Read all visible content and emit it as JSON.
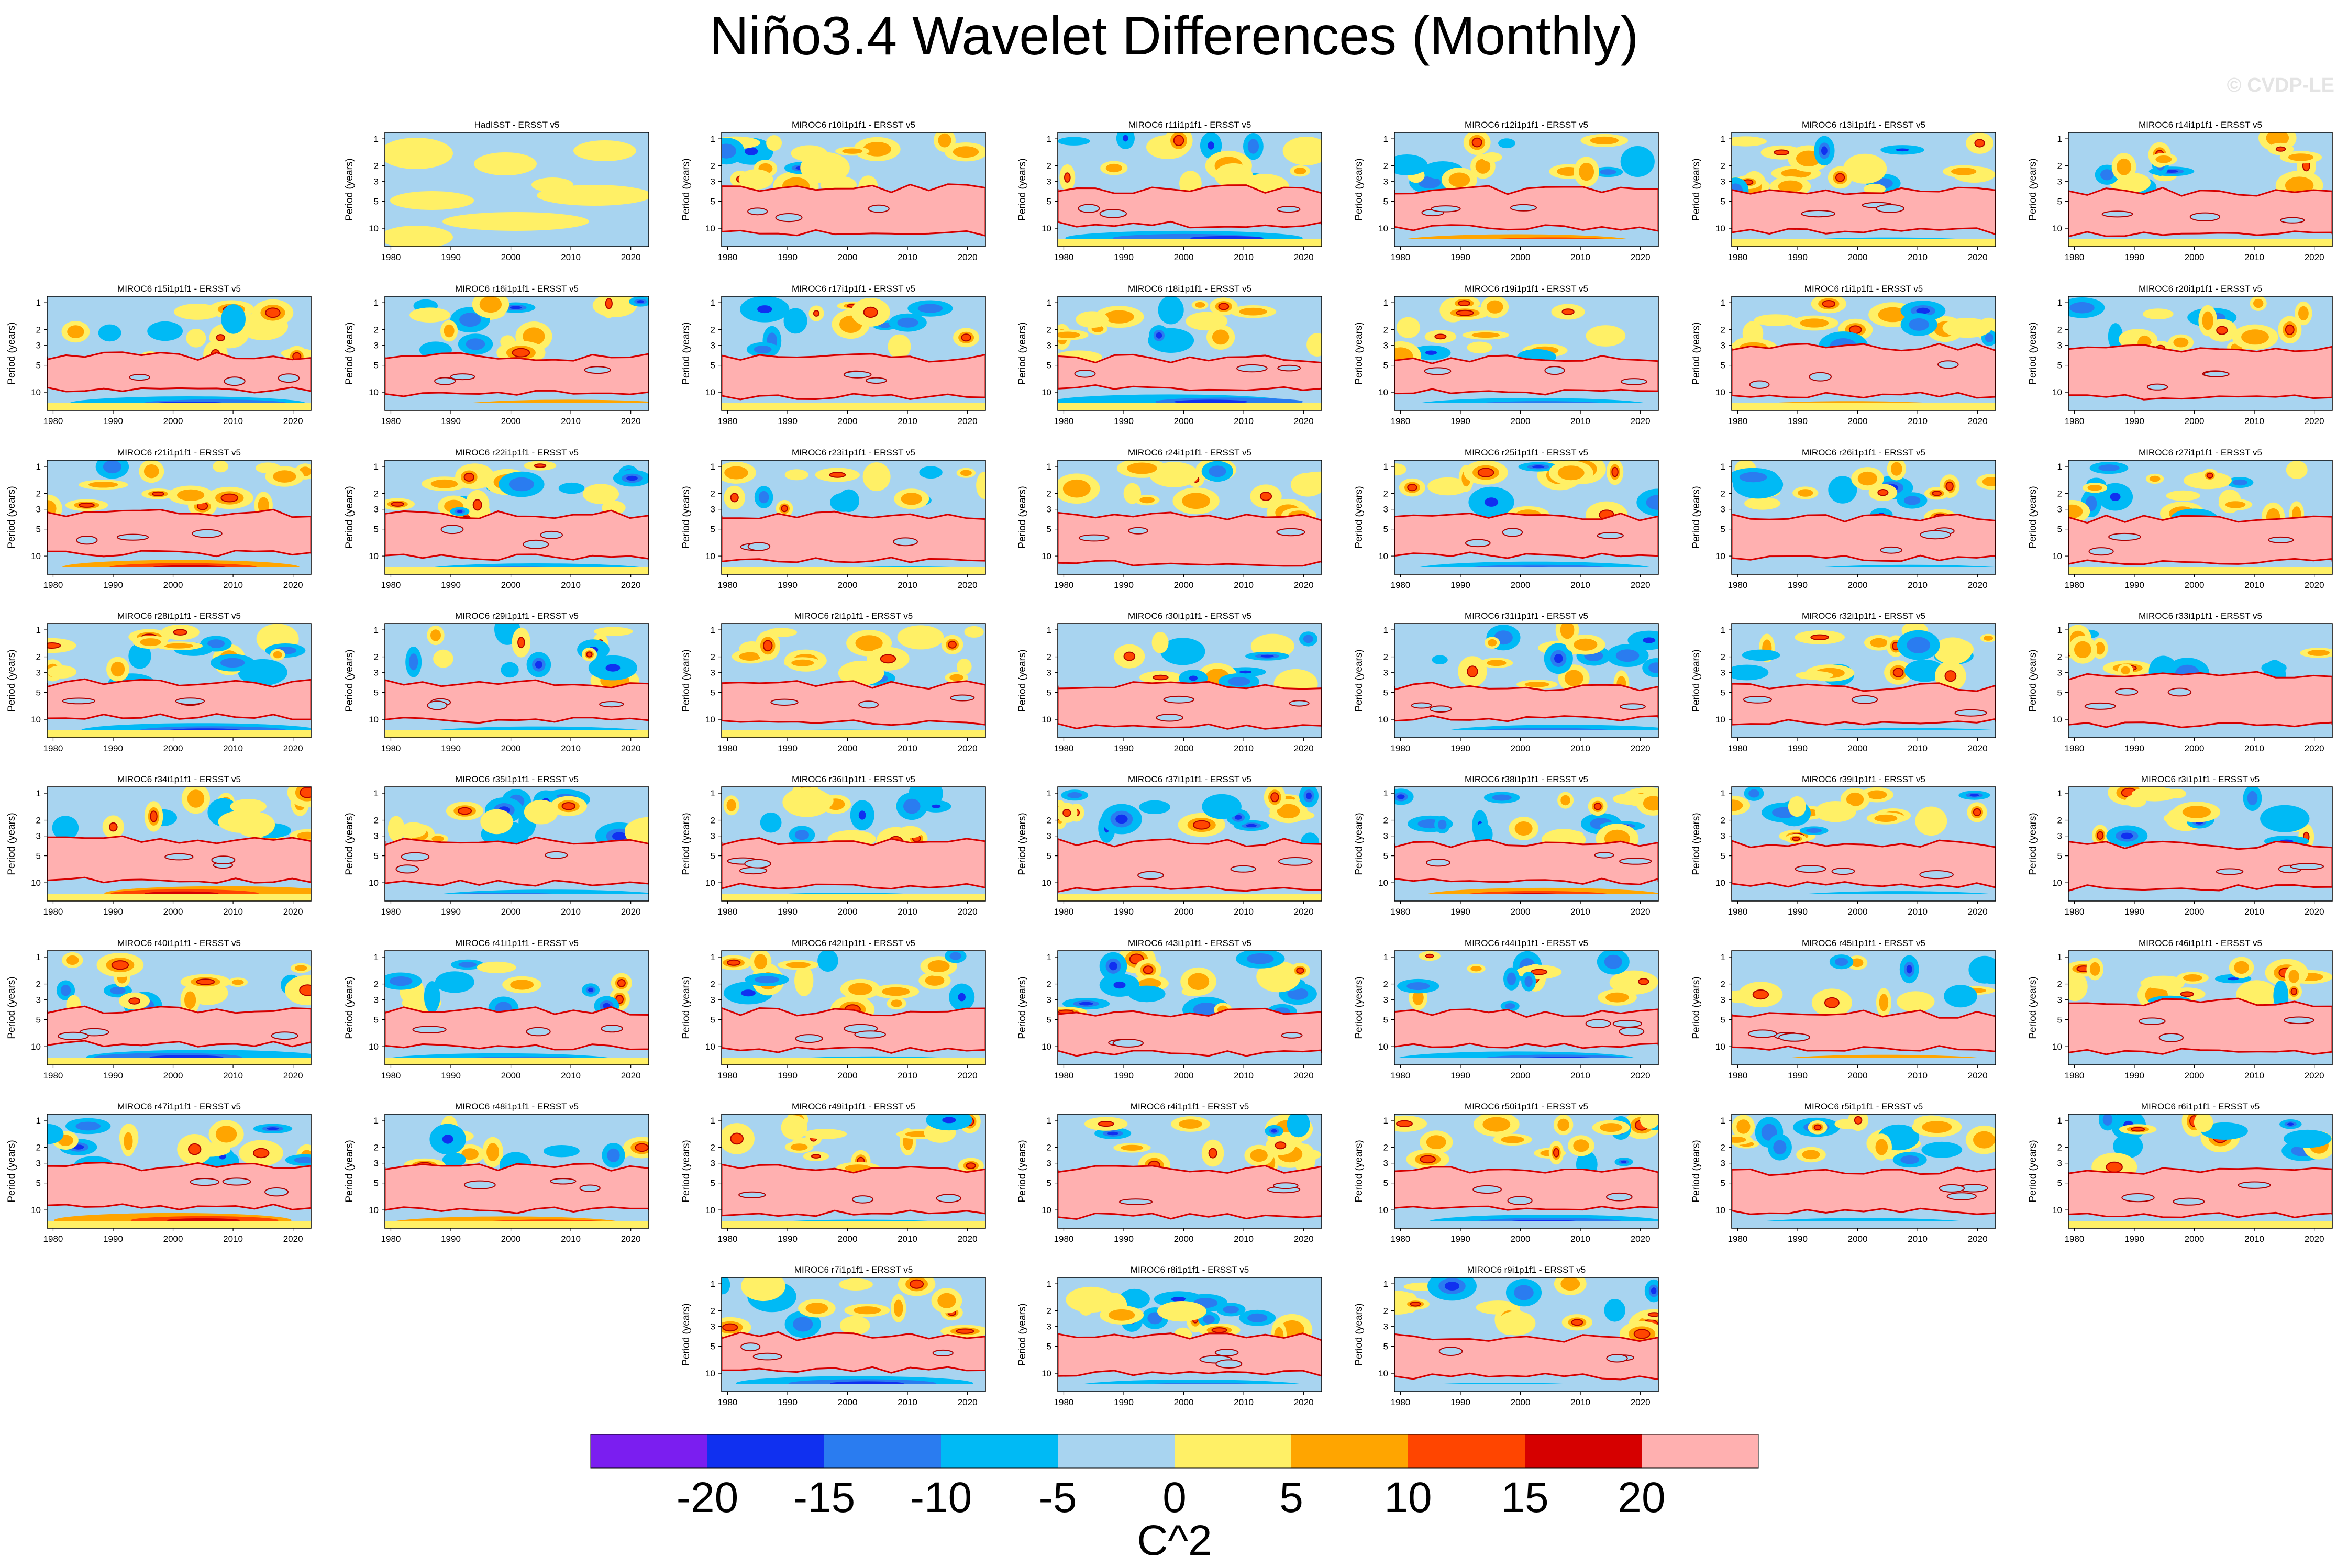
{
  "title": "Niño3.4 Wavelet Differences (Monthly)",
  "watermark": "© CVDP-LE",
  "chart_data": {
    "type": "heatmap",
    "title": "Niño3.4 Wavelet Differences (Monthly)",
    "ylabel": "Period (years)",
    "xticks": [
      "1980",
      "1990",
      "2000",
      "2010",
      "2020"
    ],
    "yticks": [
      "1",
      "2",
      "3",
      "5",
      "10"
    ],
    "xlim": [
      1979,
      2023
    ],
    "ylim_period_years": [
      0.85,
      16
    ],
    "colorbar": {
      "labels": [
        "-20",
        "-15",
        "-10",
        "-5",
        "0",
        "5",
        "10",
        "15",
        "20"
      ],
      "colors": [
        "#7b1ef0",
        "#1030f0",
        "#2a7cf0",
        "#00baf5",
        "#a8d4f0",
        "#fff066",
        "#ffa500",
        "#ff4500",
        "#d60000",
        "#ffb0b0"
      ],
      "unit": "C^2"
    },
    "panels": [
      {
        "row": 0,
        "col": 1,
        "title": "HadISST - ERSST v5"
      },
      {
        "row": 0,
        "col": 2,
        "title": "MIROC6 r10i1p1f1 - ERSST v5"
      },
      {
        "row": 0,
        "col": 3,
        "title": "MIROC6 r11i1p1f1 - ERSST v5"
      },
      {
        "row": 0,
        "col": 4,
        "title": "MIROC6 r12i1p1f1 - ERSST v5"
      },
      {
        "row": 0,
        "col": 5,
        "title": "MIROC6 r13i1p1f1 - ERSST v5"
      },
      {
        "row": 0,
        "col": 6,
        "title": "MIROC6 r14i1p1f1 - ERSST v5"
      },
      {
        "row": 1,
        "col": 0,
        "title": "MIROC6 r15i1p1f1 - ERSST v5"
      },
      {
        "row": 1,
        "col": 1,
        "title": "MIROC6 r16i1p1f1 - ERSST v5"
      },
      {
        "row": 1,
        "col": 2,
        "title": "MIROC6 r17i1p1f1 - ERSST v5"
      },
      {
        "row": 1,
        "col": 3,
        "title": "MIROC6 r18i1p1f1 - ERSST v5"
      },
      {
        "row": 1,
        "col": 4,
        "title": "MIROC6 r19i1p1f1 - ERSST v5"
      },
      {
        "row": 1,
        "col": 5,
        "title": "MIROC6 r1i1p1f1 - ERSST v5"
      },
      {
        "row": 1,
        "col": 6,
        "title": "MIROC6 r20i1p1f1 - ERSST v5"
      },
      {
        "row": 2,
        "col": 0,
        "title": "MIROC6 r21i1p1f1 - ERSST v5"
      },
      {
        "row": 2,
        "col": 1,
        "title": "MIROC6 r22i1p1f1 - ERSST v5"
      },
      {
        "row": 2,
        "col": 2,
        "title": "MIROC6 r23i1p1f1 - ERSST v5"
      },
      {
        "row": 2,
        "col": 3,
        "title": "MIROC6 r24i1p1f1 - ERSST v5"
      },
      {
        "row": 2,
        "col": 4,
        "title": "MIROC6 r25i1p1f1 - ERSST v5"
      },
      {
        "row": 2,
        "col": 5,
        "title": "MIROC6 r26i1p1f1 - ERSST v5"
      },
      {
        "row": 2,
        "col": 6,
        "title": "MIROC6 r27i1p1f1 - ERSST v5"
      },
      {
        "row": 3,
        "col": 0,
        "title": "MIROC6 r28i1p1f1 - ERSST v5"
      },
      {
        "row": 3,
        "col": 1,
        "title": "MIROC6 r29i1p1f1 - ERSST v5"
      },
      {
        "row": 3,
        "col": 2,
        "title": "MIROC6 r2i1p1f1 - ERSST v5"
      },
      {
        "row": 3,
        "col": 3,
        "title": "MIROC6 r30i1p1f1 - ERSST v5"
      },
      {
        "row": 3,
        "col": 4,
        "title": "MIROC6 r31i1p1f1 - ERSST v5"
      },
      {
        "row": 3,
        "col": 5,
        "title": "MIROC6 r32i1p1f1 - ERSST v5"
      },
      {
        "row": 3,
        "col": 6,
        "title": "MIROC6 r33i1p1f1 - ERSST v5"
      },
      {
        "row": 4,
        "col": 0,
        "title": "MIROC6 r34i1p1f1 - ERSST v5"
      },
      {
        "row": 4,
        "col": 1,
        "title": "MIROC6 r35i1p1f1 - ERSST v5"
      },
      {
        "row": 4,
        "col": 2,
        "title": "MIROC6 r36i1p1f1 - ERSST v5"
      },
      {
        "row": 4,
        "col": 3,
        "title": "MIROC6 r37i1p1f1 - ERSST v5"
      },
      {
        "row": 4,
        "col": 4,
        "title": "MIROC6 r38i1p1f1 - ERSST v5"
      },
      {
        "row": 4,
        "col": 5,
        "title": "MIROC6 r39i1p1f1 - ERSST v5"
      },
      {
        "row": 4,
        "col": 6,
        "title": "MIROC6 r3i1p1f1 - ERSST v5"
      },
      {
        "row": 5,
        "col": 0,
        "title": "MIROC6 r40i1p1f1 - ERSST v5"
      },
      {
        "row": 5,
        "col": 1,
        "title": "MIROC6 r41i1p1f1 - ERSST v5"
      },
      {
        "row": 5,
        "col": 2,
        "title": "MIROC6 r42i1p1f1 - ERSST v5"
      },
      {
        "row": 5,
        "col": 3,
        "title": "MIROC6 r43i1p1f1 - ERSST v5"
      },
      {
        "row": 5,
        "col": 4,
        "title": "MIROC6 r44i1p1f1 - ERSST v5"
      },
      {
        "row": 5,
        "col": 5,
        "title": "MIROC6 r45i1p1f1 - ERSST v5"
      },
      {
        "row": 5,
        "col": 6,
        "title": "MIROC6 r46i1p1f1 - ERSST v5"
      },
      {
        "row": 6,
        "col": 0,
        "title": "MIROC6 r47i1p1f1 - ERSST v5"
      },
      {
        "row": 6,
        "col": 1,
        "title": "MIROC6 r48i1p1f1 - ERSST v5"
      },
      {
        "row": 6,
        "col": 2,
        "title": "MIROC6 r49i1p1f1 - ERSST v5"
      },
      {
        "row": 6,
        "col": 3,
        "title": "MIROC6 r4i1p1f1 - ERSST v5"
      },
      {
        "row": 6,
        "col": 4,
        "title": "MIROC6 r50i1p1f1 - ERSST v5"
      },
      {
        "row": 6,
        "col": 5,
        "title": "MIROC6 r5i1p1f1 - ERSST v5"
      },
      {
        "row": 6,
        "col": 6,
        "title": "MIROC6 r6i1p1f1 - ERSST v5"
      },
      {
        "row": 7,
        "col": 2,
        "title": "MIROC6 r7i1p1f1 - ERSST v5"
      },
      {
        "row": 7,
        "col": 3,
        "title": "MIROC6 r8i1p1f1 - ERSST v5"
      },
      {
        "row": 7,
        "col": 4,
        "title": "MIROC6 r9i1p1f1 - ERSST v5"
      }
    ]
  }
}
